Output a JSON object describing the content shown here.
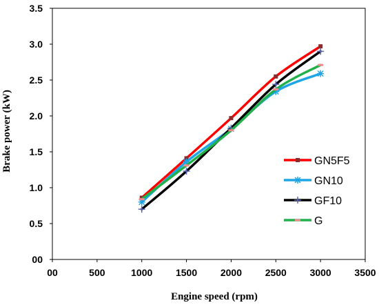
{
  "chart_data": {
    "type": "line",
    "xlabel": "Engine speed (rpm)",
    "ylabel": "Brake power (kW)",
    "xlim": [
      0,
      3500
    ],
    "ylim": [
      0,
      3.5
    ],
    "x_ticks": [
      0,
      500,
      1000,
      1500,
      2000,
      2500,
      3000,
      3500
    ],
    "x_tick_labels": [
      "00",
      "500",
      "1000",
      "1500",
      "2000",
      "2500",
      "3000",
      "3500"
    ],
    "y_ticks": [
      0,
      0.5,
      1.0,
      1.5,
      2.0,
      2.5,
      3.0,
      3.5
    ],
    "y_tick_labels": [
      "00",
      "0.5",
      "1.0",
      "1.5",
      "2.0",
      "2.5",
      "3.0",
      "3.5"
    ],
    "grid": false,
    "legend_position": "right",
    "x": [
      1000,
      1500,
      2000,
      2500,
      3000
    ],
    "series": [
      {
        "name": "GN5F5",
        "color": "#ff0000",
        "marker": "square",
        "values": [
          0.86,
          1.41,
          1.97,
          2.55,
          2.97
        ]
      },
      {
        "name": "GN10",
        "color": "#1fa5e6",
        "marker": "asterisk",
        "values": [
          0.8,
          1.36,
          1.82,
          2.34,
          2.59
        ]
      },
      {
        "name": "GF10",
        "color": "#000000",
        "marker": "plus",
        "values": [
          0.7,
          1.23,
          1.83,
          2.44,
          2.9
        ]
      },
      {
        "name": "G",
        "color": "#22b04a",
        "marker": "dash",
        "values": [
          0.84,
          1.31,
          1.8,
          2.37,
          2.71
        ]
      }
    ]
  }
}
